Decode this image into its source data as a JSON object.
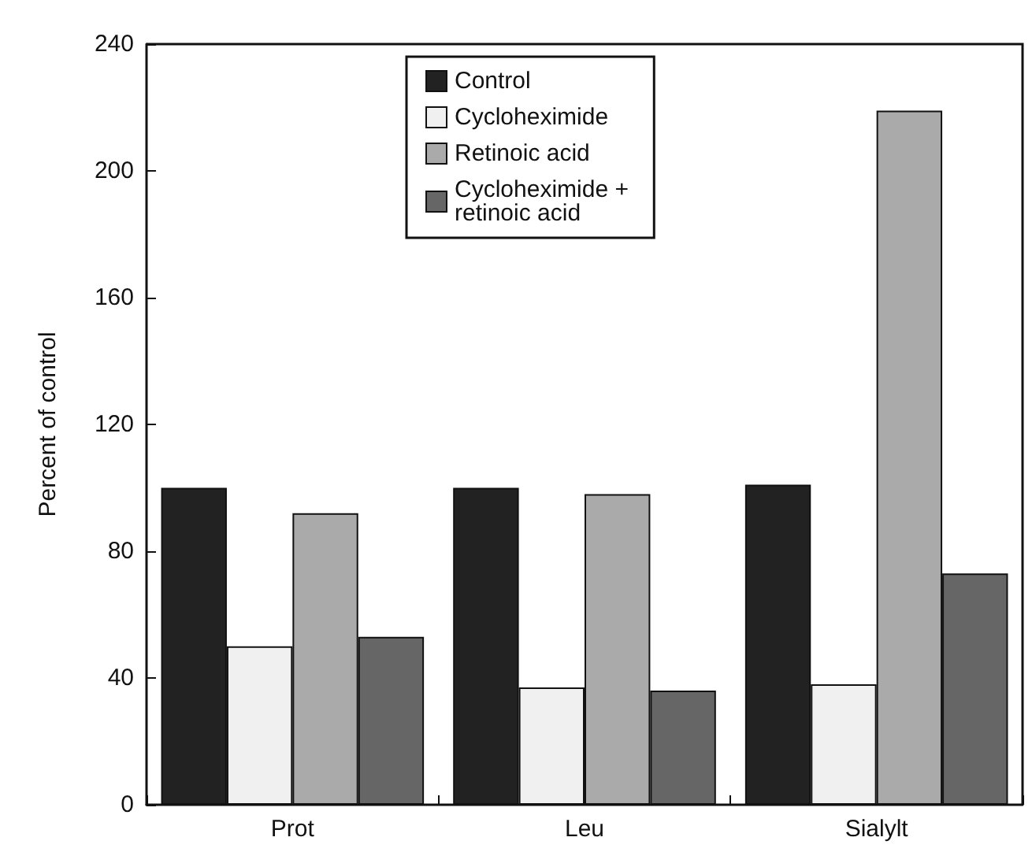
{
  "chart_data": {
    "type": "bar",
    "ylabel": "Percent of control",
    "categories": [
      "Prot",
      "Leu",
      "Sialylt"
    ],
    "series": [
      {
        "name": "Control",
        "color": "#222222",
        "values": [
          100,
          100,
          101
        ]
      },
      {
        "name": "Cycloheximide",
        "color": "#f0f0f0",
        "values": [
          50,
          37,
          38
        ]
      },
      {
        "name": "Retinoic acid",
        "color": "#aaaaaa",
        "values": [
          92,
          98,
          219
        ]
      },
      {
        "name": "Cycloheximide + retinoic acid",
        "color": "#666666",
        "values": [
          53,
          36,
          73
        ]
      }
    ],
    "ylim": [
      0,
      240
    ],
    "yticks": [
      0,
      40,
      80,
      120,
      160,
      200,
      240
    ],
    "grid": false,
    "legend": "top"
  }
}
